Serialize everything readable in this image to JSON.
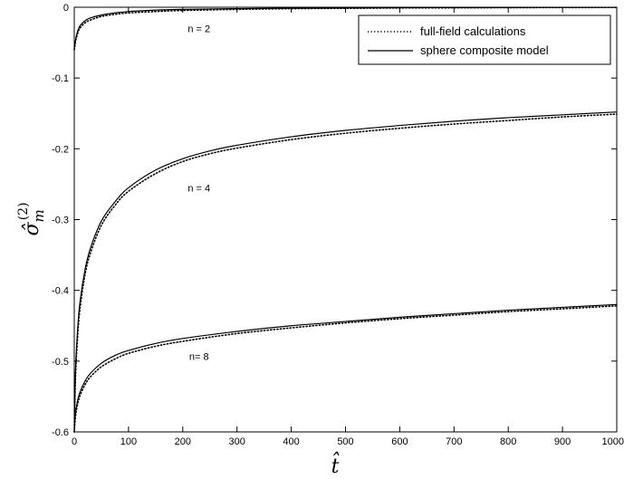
{
  "chart_data": {
    "type": "line",
    "title": "",
    "xlabel": "t̂",
    "ylabel_main": "σ̂",
    "ylabel_sup": "(2)",
    "ylabel_sub": "m",
    "xlim": [
      0,
      1000
    ],
    "ylim": [
      -0.6,
      0
    ],
    "xticks": [
      0,
      100,
      200,
      300,
      400,
      500,
      600,
      700,
      800,
      900,
      1000
    ],
    "xtick_labels": [
      "0",
      "100",
      "200",
      "300",
      "400",
      "500",
      "600",
      "700",
      "800",
      "900",
      "1000"
    ],
    "yticks": [
      -0.6,
      -0.5,
      -0.4,
      -0.3,
      -0.2,
      -0.1,
      0
    ],
    "ytick_labels": [
      "-0.6",
      "-0.5",
      "-0.4",
      "-0.3",
      "-0.2",
      "-0.1",
      "0"
    ],
    "grid": false,
    "legend_position": "top-right",
    "legend": [
      {
        "label": "full-field calculations",
        "style": "dotted"
      },
      {
        "label": "sphere composite model",
        "style": "solid"
      }
    ],
    "annotations": [
      {
        "text": "n = 2",
        "x": 230,
        "y": -0.03
      },
      {
        "text": "n = 4",
        "x": 230,
        "y": -0.255
      },
      {
        "text": "n= 8",
        "x": 230,
        "y": -0.493
      }
    ],
    "series": [
      {
        "group": "n = 2",
        "style": "solid",
        "x": [
          0,
          2,
          5,
          10,
          20,
          30,
          50,
          75,
          100,
          150,
          200,
          300,
          400,
          500,
          600,
          700,
          800,
          900,
          1000
        ],
        "y": [
          -0.06,
          -0.048,
          -0.037,
          -0.027,
          -0.019,
          -0.015,
          -0.011,
          -0.008,
          -0.006,
          -0.004,
          -0.003,
          -0.002,
          -0.0013,
          -0.001,
          -0.0007,
          -0.0005,
          -0.0003,
          -0.0002,
          -0.0001
        ]
      },
      {
        "group": "n = 2",
        "style": "dotted",
        "x": [
          0,
          2,
          5,
          10,
          20,
          30,
          50,
          75,
          100,
          150,
          200,
          300,
          400,
          500,
          600,
          700,
          800,
          900,
          1000
        ],
        "y": [
          -0.06,
          -0.05,
          -0.04,
          -0.03,
          -0.022,
          -0.018,
          -0.013,
          -0.01,
          -0.008,
          -0.006,
          -0.0045,
          -0.003,
          -0.002,
          -0.0015,
          -0.001,
          -0.0008,
          -0.0006,
          -0.0004,
          -0.0003
        ]
      },
      {
        "group": "n = 4",
        "style": "solid",
        "x": [
          0,
          2,
          5,
          10,
          20,
          30,
          50,
          75,
          100,
          150,
          200,
          250,
          300,
          400,
          500,
          600,
          700,
          800,
          900,
          1000
        ],
        "y": [
          -0.6,
          -0.52,
          -0.47,
          -0.42,
          -0.37,
          -0.34,
          -0.302,
          -0.275,
          -0.255,
          -0.23,
          -0.214,
          -0.203,
          -0.195,
          -0.183,
          -0.174,
          -0.167,
          -0.161,
          -0.156,
          -0.152,
          -0.148
        ]
      },
      {
        "group": "n = 4",
        "style": "dotted",
        "x": [
          0,
          2,
          5,
          10,
          20,
          30,
          50,
          75,
          100,
          150,
          200,
          250,
          300,
          400,
          500,
          600,
          700,
          800,
          900,
          1000
        ],
        "y": [
          -0.6,
          -0.53,
          -0.48,
          -0.43,
          -0.377,
          -0.347,
          -0.308,
          -0.28,
          -0.26,
          -0.235,
          -0.218,
          -0.207,
          -0.199,
          -0.187,
          -0.178,
          -0.171,
          -0.165,
          -0.16,
          -0.155,
          -0.151
        ]
      },
      {
        "group": "n = 8",
        "style": "solid",
        "x": [
          0,
          2,
          5,
          10,
          20,
          30,
          50,
          75,
          100,
          150,
          200,
          300,
          400,
          500,
          600,
          700,
          800,
          900,
          1000
        ],
        "y": [
          -0.6,
          -0.575,
          -0.56,
          -0.545,
          -0.528,
          -0.517,
          -0.503,
          -0.492,
          -0.485,
          -0.475,
          -0.468,
          -0.458,
          -0.45,
          -0.444,
          -0.438,
          -0.433,
          -0.428,
          -0.424,
          -0.42
        ]
      },
      {
        "group": "n = 8",
        "style": "dotted",
        "x": [
          0,
          2,
          5,
          10,
          20,
          30,
          50,
          75,
          100,
          150,
          200,
          300,
          400,
          500,
          600,
          700,
          800,
          900,
          1000
        ],
        "y": [
          -0.6,
          -0.58,
          -0.565,
          -0.55,
          -0.533,
          -0.522,
          -0.508,
          -0.497,
          -0.489,
          -0.479,
          -0.472,
          -0.461,
          -0.453,
          -0.446,
          -0.44,
          -0.435,
          -0.43,
          -0.426,
          -0.422
        ]
      }
    ]
  }
}
